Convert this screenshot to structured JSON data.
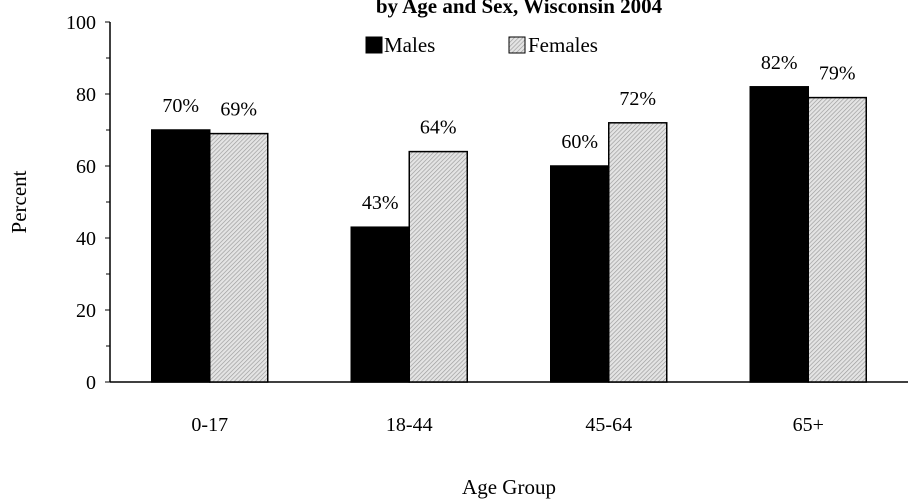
{
  "chart_data": {
    "type": "bar",
    "title": "by Age and Sex, Wisconsin 2004",
    "xlabel": "Age Group",
    "ylabel": "Percent",
    "categories": [
      "0-17",
      "18-44",
      "45-64",
      "65+"
    ],
    "series": [
      {
        "name": "Males",
        "values": [
          70,
          43,
          60,
          82
        ],
        "labels": [
          "70%",
          "43%",
          "60%",
          "82%"
        ],
        "color": "#000000",
        "fill": "solid"
      },
      {
        "name": "Females",
        "values": [
          69,
          64,
          72,
          79
        ],
        "labels": [
          "69%",
          "64%",
          "72%",
          "79%"
        ],
        "color": "#b0b0b0",
        "fill": "diagonal-hatch"
      }
    ],
    "ylim": [
      0,
      100
    ],
    "yticks": [
      "0",
      "20",
      "40",
      "60",
      "80",
      "100"
    ],
    "grid": false,
    "legend_position": "top-center"
  }
}
